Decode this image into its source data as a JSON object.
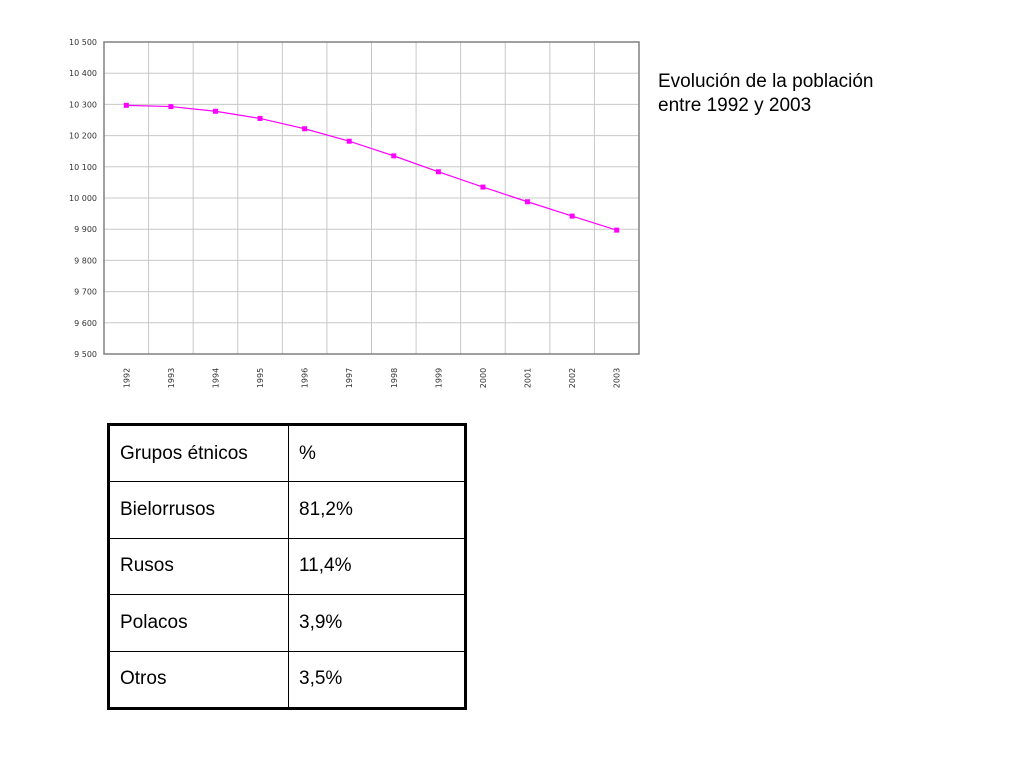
{
  "caption": {
    "line1": "Evolución de la población",
    "line2": "entre 1992 y 2003"
  },
  "colors": {
    "series": "#ff00ff",
    "grid": "#c8c8c8",
    "axis": "#808080"
  },
  "chart_data": {
    "type": "line",
    "title": "",
    "xlabel": "",
    "ylabel": "",
    "x": [
      "1992",
      "1993",
      "1994",
      "1995",
      "1996",
      "1997",
      "1998",
      "1999",
      "2000",
      "2001",
      "2002",
      "2003"
    ],
    "ylim": [
      9500,
      10500
    ],
    "yticks": [
      9500,
      9600,
      9700,
      9800,
      9900,
      10000,
      10100,
      10200,
      10300,
      10400,
      10500
    ],
    "ytick_labels": [
      "9 500",
      "9 600",
      "9 700",
      "9 800",
      "9 900",
      "10 000",
      "10 100",
      "10 200",
      "10 300",
      "10 400",
      "10 500"
    ],
    "grid": true,
    "series": [
      {
        "values": [
          10297,
          10293,
          10278,
          10255,
          10222,
          10182,
          10135,
          10084,
          10035,
          9988,
          9942,
          9897
        ]
      }
    ]
  },
  "table": {
    "header": [
      "Grupos étnicos",
      "%"
    ],
    "rows": [
      [
        "Bielorrusos",
        "81,2%"
      ],
      [
        "Rusos",
        "11,4%"
      ],
      [
        "Polacos",
        "3,9%"
      ],
      [
        "Otros",
        "3,5%"
      ]
    ]
  }
}
